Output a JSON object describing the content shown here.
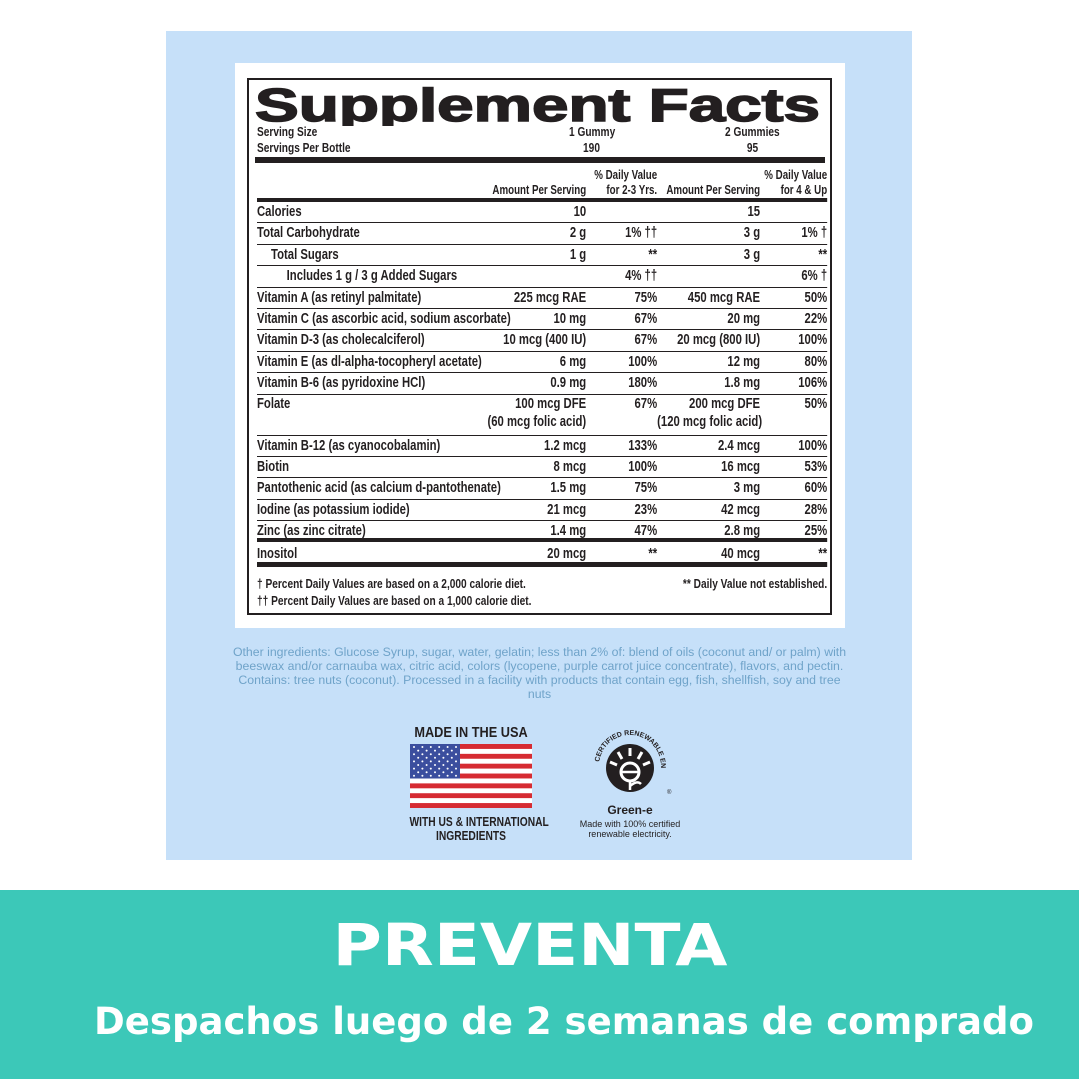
{
  "label": {
    "title": "Supplement Facts",
    "serving_size_label": "Serving Size",
    "serving_size_1": "1 Gummy",
    "serving_size_2": "2 Gummies",
    "servings_label": "Servings Per Bottle",
    "servings_1": "190",
    "servings_2": "95",
    "headers": [
      "Amount Per Serving",
      "% Daily Value for 2-3 Yrs.",
      "Amount Per Serving",
      "% Daily Value for 4 & Up"
    ],
    "rows": [
      {
        "name": "Calories",
        "a1": "10",
        "d1": "",
        "a2": "15",
        "d2": ""
      },
      {
        "name": "Total Carbohydrate",
        "a1": "2 g",
        "d1": "1% ††",
        "a2": "3 g",
        "d2": "1% †"
      },
      {
        "name": "Total Sugars",
        "a1": "1 g",
        "d1": "**",
        "a2": "3 g",
        "d2": "**"
      },
      {
        "name": "Includes 1 g / 3 g Added Sugars",
        "a1": "",
        "d1": "4% ††",
        "a2": "",
        "d2": "6% †"
      },
      {
        "name": "Vitamin A (as retinyl palmitate)",
        "a1": "225 mcg RAE",
        "d1": "75%",
        "a2": "450 mcg RAE",
        "d2": "50%"
      },
      {
        "name": "Vitamin C (as ascorbic acid, sodium ascorbate)",
        "a1": "10 mg",
        "d1": "67%",
        "a2": "20 mg",
        "d2": "22%"
      },
      {
        "name": "Vitamin D-3 (as cholecalciferol)",
        "a1": "10 mcg (400 IU)",
        "d1": "67%",
        "a2": "20 mcg (800 IU)",
        "d2": "100%"
      },
      {
        "name": "Vitamin E (as dl-alpha-tocopheryl acetate)",
        "a1": "6 mg",
        "d1": "100%",
        "a2": "12 mg",
        "d2": "80%"
      },
      {
        "name": "Vitamin B-6 (as pyridoxine HCl)",
        "a1": "0.9 mg",
        "d1": "180%",
        "a2": "1.8 mg",
        "d2": "106%"
      },
      {
        "name": "Folate",
        "a1": "100 mcg DFE",
        "a1b": "(60 mcg folic acid)",
        "d1": "67%",
        "a2": "200 mcg DFE",
        "a2b": "(120 mcg folic acid)",
        "d2": "50%"
      },
      {
        "name": "Vitamin B-12 (as cyanocobalamin)",
        "a1": "1.2 mcg",
        "d1": "133%",
        "a2": "2.4 mcg",
        "d2": "100%"
      },
      {
        "name": "Biotin",
        "a1": "8 mcg",
        "d1": "100%",
        "a2": "16 mcg",
        "d2": "53%"
      },
      {
        "name": "Pantothenic acid (as calcium d-pantothenate)",
        "a1": "1.5 mg",
        "d1": "75%",
        "a2": "3 mg",
        "d2": "60%"
      },
      {
        "name": "Iodine (as potassium iodide)",
        "a1": "21 mcg",
        "d1": "23%",
        "a2": "42 mcg",
        "d2": "28%"
      },
      {
        "name": "Zinc (as zinc citrate)",
        "a1": "1.4 mg",
        "d1": "47%",
        "a2": "2.8 mg",
        "d2": "25%"
      },
      {
        "name": "Inositol",
        "a1": "20 mcg",
        "d1": "**",
        "a2": "40 mcg",
        "d2": "**"
      }
    ],
    "footnote_1": "† Percent Daily Values are based on a 2,000 calorie diet.",
    "footnote_2": "†† Percent Daily Values are based on a 1,000 calorie diet.",
    "footnote_3": "** Daily Value not established."
  },
  "ingredients": "Other ingredients: Glucose Syrup, sugar, water, gelatin; less than 2% of: blend of oils (coconut and/ or palm) with beeswax and/or carnauba wax, citric acid, colors (lycopene, purple carrot juice concentrate), flavors, and pectin. Contains: tree nuts (coconut). Processed in a facility with products that contain egg, fish, shellfish, soy and tree nuts",
  "badges": {
    "usa_top": "MADE IN THE USA",
    "usa_bottom_1": "WITH US & INTERNATIONAL",
    "usa_bottom_2": "INGREDIENTS",
    "greene_arc": "CERTIFIED RENEWABLE ENERGY",
    "greene_name": "Green-e",
    "greene_reg": "®",
    "greene_desc_1": "Made with 100% certified",
    "greene_desc_2": "renewable electricity."
  },
  "banner": {
    "title": "PREVENTA",
    "subtitle": "Despachos luego de 2 semanas de comprado"
  },
  "colors": {
    "panel": "#c6e0f9",
    "banner": "#3cc8b8",
    "ingredients_text": "#6fa3c9",
    "label_ink": "#231f20"
  }
}
